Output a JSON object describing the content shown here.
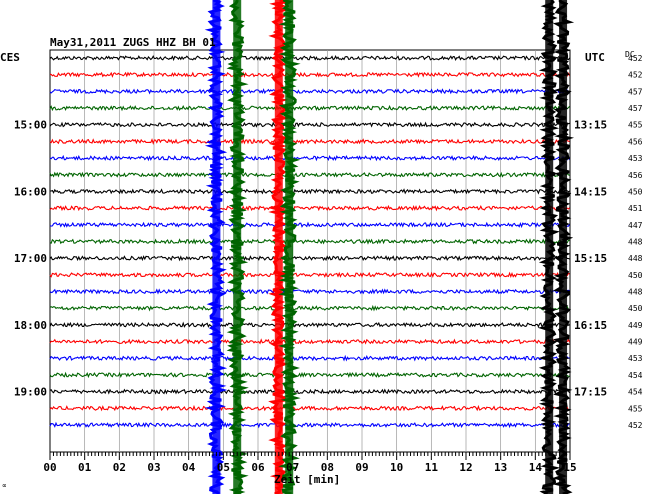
{
  "chart_data": {
    "type": "line",
    "title": "May31,2011   ZUGS HHZ BH 01",
    "left_axis_label": "CES",
    "right_axis_label": "UTC",
    "dc_label": "DC",
    "xlabel": "Zeit [min]",
    "xlim": [
      0,
      15
    ],
    "x_ticks": [
      "00",
      "01",
      "02",
      "03",
      "04",
      "05",
      "06",
      "07",
      "08",
      "09",
      "10",
      "11",
      "12",
      "13",
      "14",
      "15"
    ],
    "left_time_labels": [
      {
        "text": "15:00",
        "row": 4
      },
      {
        "text": "16:00",
        "row": 8
      },
      {
        "text": "17:00",
        "row": 12
      },
      {
        "text": "18:00",
        "row": 16
      },
      {
        "text": "19:00",
        "row": 20
      }
    ],
    "right_time_labels": [
      {
        "text": "13:15",
        "row": 4
      },
      {
        "text": "14:15",
        "row": 8
      },
      {
        "text": "15:15",
        "row": 12
      },
      {
        "text": "16:15",
        "row": 16
      },
      {
        "text": "17:15",
        "row": 20
      }
    ],
    "dc_values": [
      "452",
      "452",
      "457",
      "457",
      "455",
      "456",
      "453",
      "456",
      "450",
      "451",
      "447",
      "448",
      "448",
      "450",
      "448",
      "450",
      "449",
      "449",
      "453",
      "454",
      "454",
      "455",
      "452"
    ],
    "trace_colors": [
      "#000000",
      "#ff0000",
      "#0000ff",
      "#006400"
    ],
    "events": [
      {
        "minute": 4.8,
        "color": "#0000ff"
      },
      {
        "minute": 5.4,
        "color": "#006400"
      },
      {
        "minute": 6.6,
        "color": "#ff0000"
      },
      {
        "minute": 6.9,
        "color": "#006400"
      },
      {
        "minute": 14.4,
        "color": "#000000"
      },
      {
        "minute": 14.8,
        "color": "#000000"
      }
    ],
    "corner_mark": "∝"
  }
}
